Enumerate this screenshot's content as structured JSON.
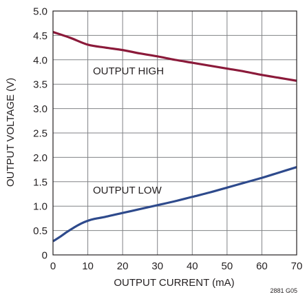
{
  "chart_data": {
    "type": "line",
    "title": "",
    "xlabel": "OUTPUT CURRENT (mA)",
    "ylabel": "OUTPUT VOLTAGE (V)",
    "xlim": [
      0,
      70
    ],
    "ylim": [
      0,
      5.0
    ],
    "x_ticks": [
      "0",
      "10",
      "20",
      "30",
      "40",
      "50",
      "60",
      "70"
    ],
    "y_ticks": [
      "0",
      "0.5",
      "1.0",
      "1.5",
      "2.0",
      "2.5",
      "3.0",
      "3.5",
      "4.0",
      "4.5",
      "5.0"
    ],
    "grid": true,
    "series": [
      {
        "name": "OUTPUT HIGH",
        "color": "#8b1a3a",
        "x": [
          0,
          5,
          10,
          15,
          20,
          25,
          30,
          35,
          40,
          45,
          50,
          55,
          60,
          65,
          70
        ],
        "y": [
          4.57,
          4.45,
          4.31,
          4.25,
          4.2,
          4.13,
          4.07,
          4.0,
          3.94,
          3.88,
          3.82,
          3.76,
          3.69,
          3.63,
          3.57
        ]
      },
      {
        "name": "OUTPUT LOW",
        "color": "#2e4a8c",
        "x": [
          0,
          2,
          4,
          6,
          8,
          10,
          12,
          15,
          20,
          25,
          30,
          35,
          40,
          45,
          50,
          55,
          60,
          65,
          70
        ],
        "y": [
          0.28,
          0.37,
          0.47,
          0.56,
          0.64,
          0.7,
          0.74,
          0.78,
          0.86,
          0.94,
          1.02,
          1.1,
          1.19,
          1.28,
          1.38,
          1.48,
          1.58,
          1.69,
          1.8
        ]
      }
    ],
    "annotations": [
      "OUTPUT HIGH",
      "OUTPUT LOW"
    ],
    "figure_id": "2881 G05"
  }
}
